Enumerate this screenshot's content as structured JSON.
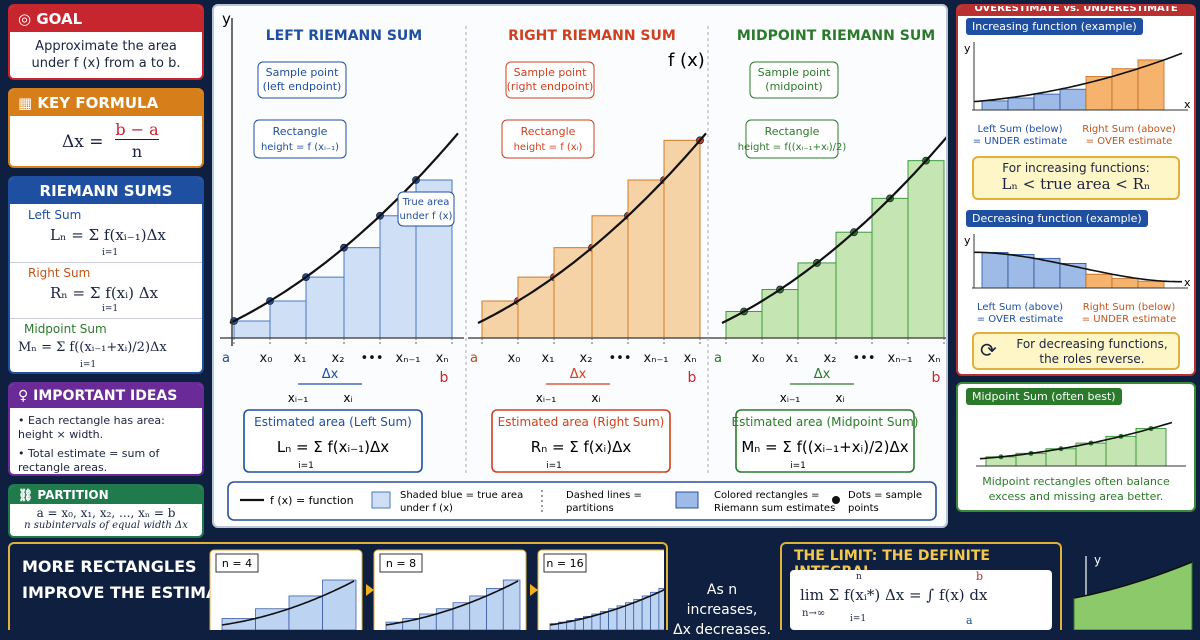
{
  "goal": {
    "title": "GOAL",
    "text1": "Approximate the area",
    "text2": "under f (x) from a to b."
  },
  "key_formula": {
    "title": "KEY FORMULA",
    "lhs": "Δx =",
    "num": "b − a",
    "den": "n"
  },
  "riemann_sums": {
    "title": "RIEMANN SUMS",
    "left": {
      "label": "Left Sum",
      "formula": "Lₙ = Σ f(xᵢ₋₁)Δx",
      "limits": "i=1"
    },
    "right": {
      "label": "Right Sum",
      "formula": "Rₙ = Σ f(xᵢ) Δx",
      "limits": "i=1"
    },
    "mid": {
      "label": "Midpoint Sum",
      "formula": "Mₙ = Σ f((xᵢ₋₁+xᵢ)/2)Δx",
      "limits": "i=1"
    }
  },
  "ideas": {
    "title": "IMPORTANT IDEAS",
    "b1": "Each rectangle has area: height × width.",
    "b2": "Total estimate = sum of rectangle areas."
  },
  "partition": {
    "title": "PARTITION",
    "line1": "a = x₀, x₁, x₂, ..., xₙ = b",
    "line2": "n subintervals of equal width Δx"
  },
  "more": {
    "line1": "MORE RECTANGLES",
    "line2": "IMPROVE THE ESTIMATE",
    "n4": "n = 4",
    "n8": "n = 8",
    "n16": "n = 16"
  },
  "panels": {
    "left": {
      "title": "LEFT RIEMANN SUM",
      "note1": "Sample point",
      "note2": "(left endpoint)",
      "rect1": "Rectangle",
      "rect2": "height = f (xᵢ₋₁)",
      "true1": "True area",
      "true2": "under f (x)",
      "est_title": "Estimated area (Left Sum)",
      "est_formula": "Lₙ = Σ f(xᵢ₋₁)Δx",
      "xi1": "xᵢ₋₁",
      "xi": "xᵢ"
    },
    "right": {
      "title": "RIGHT RIEMANN SUM",
      "note1": "Sample point",
      "note2": "(right endpoint)",
      "rect1": "Rectangle",
      "rect2": "height = f (xᵢ)",
      "est_title": "Estimated area  (Right Sum)",
      "est_formula": "Rₙ = Σ f(xᵢ)Δx",
      "xi1": "xᵢ₋₁",
      "xi": "xᵢ"
    },
    "mid": {
      "title": "MIDPOINT RIEMANN SUM",
      "note1": "Sample point",
      "note2": "(midpoint)",
      "rect1": "Rectangle",
      "rect2": "height = f((xᵢ₋₁+xᵢ)/2)",
      "est_title": "Estimated area (Midpoint Sum)",
      "est_formula": "Mₙ = Σ f((xᵢ₋₁+xᵢ)/2)Δx",
      "xi1": "xᵢ₋₁",
      "xi": "xᵢ"
    }
  },
  "axis": {
    "y": "y",
    "fx": "f (x)",
    "a": "a",
    "b": "b",
    "x0": "x₀",
    "x1": "x₁",
    "x2": "x₂",
    "dots": "•••",
    "xn1": "xₙ₋₁",
    "xn": "xₙ",
    "dx": "Δx",
    "i1": "i=1",
    "n": "n"
  },
  "legend": {
    "fx": "f (x) = function",
    "shaded1": "Shaded blue = true area",
    "shaded2": "under f (x)",
    "dashed1": "Dashed lines =",
    "dashed2": "partitions",
    "colored1": "Colored rectangles =",
    "colored2": "Riemann sum estimates",
    "dots1": "Dots = sample",
    "dots2": "points"
  },
  "overunder": {
    "title": "OVERESTIMATE vs. UNDERESTIMATE",
    "inc_title": "Increasing function (example)",
    "inc_left1": "Left Sum (below)",
    "inc_left2": "= UNDER estimate",
    "inc_right1": "Right Sum (above)",
    "inc_right2": "= OVER estimate",
    "inc_box1": "For increasing functions:",
    "inc_box2": "Lₙ < true area < Rₙ",
    "dec_title": "Decreasing function (example)",
    "dec_left1": "Left Sum (above)",
    "dec_left2": "= OVER estimate",
    "dec_right1": "Right Sum (below)",
    "dec_right2": "= UNDER estimate",
    "dec_box1": "For decreasing functions,",
    "dec_box2": "the roles reverse.",
    "mid_title": "Midpoint Sum (often best)",
    "mid_note1": "Midpoint rectangles often balance",
    "mid_note2": "excess and missing area better.",
    "y": "y",
    "x": "x"
  },
  "limit": {
    "title": "THE LIMIT: THE DEFINITE INTEGRAL",
    "formula": "lim Σ f(xᵢ*) Δx = ∫ f(x) dx",
    "sub": "n→∞",
    "i1": "i=1",
    "n": "n",
    "b": "b",
    "a": "a",
    "as1": "As n increases,",
    "as2": "Δx decreases.",
    "y": "y"
  }
}
